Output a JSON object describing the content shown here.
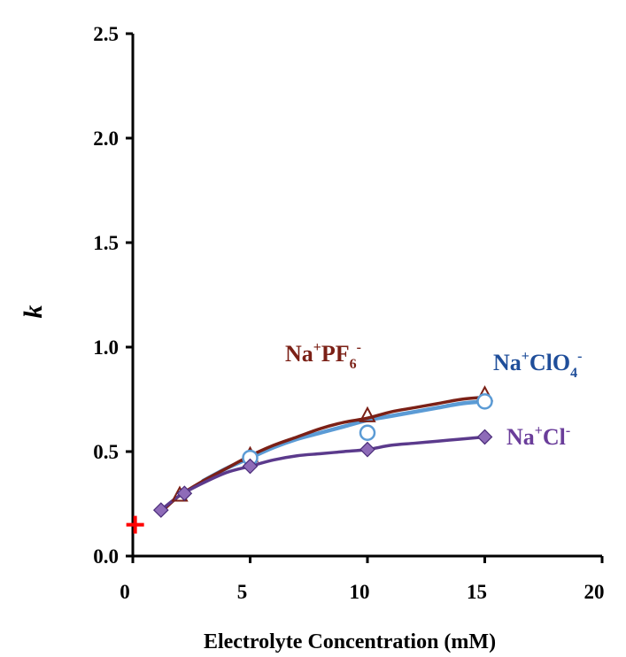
{
  "chart_data": {
    "type": "scatter",
    "xlabel": "Electrolyte Concentration (mM)",
    "ylabel": "k",
    "xlim": [
      0,
      20
    ],
    "ylim": [
      0,
      2.5
    ],
    "x_ticks": [
      "0",
      "5",
      "10",
      "15",
      "20"
    ],
    "y_ticks": [
      "0.0",
      "0.5",
      "1.0",
      "1.5",
      "2.0",
      "2.5"
    ],
    "grid": false,
    "series": [
      {
        "name": "Na+PF6-",
        "label_parts": {
          "base": "Na",
          "sup1": "+",
          "mid": "PF",
          "sub": "6",
          "sup2": "-"
        },
        "color": "#7b2016",
        "marker": "triangle",
        "x": [
          2,
          5,
          10,
          15
        ],
        "y": [
          0.29,
          0.48,
          0.67,
          0.77
        ],
        "fit_x": [
          1.2,
          2,
          3,
          4,
          5,
          6,
          7,
          8,
          9,
          10,
          11,
          12,
          13,
          14,
          15
        ],
        "fit_y": [
          0.21,
          0.29,
          0.36,
          0.42,
          0.48,
          0.53,
          0.57,
          0.61,
          0.64,
          0.66,
          0.69,
          0.71,
          0.73,
          0.75,
          0.76
        ]
      },
      {
        "name": "Na+ClO4-",
        "label_parts": {
          "base": "Na",
          "sup1": "+",
          "mid": "ClO",
          "sub": "4",
          "sup2": "-"
        },
        "color": "#1f4e9a",
        "marker_color": "#5b9bd5",
        "marker": "circle",
        "x": [
          5,
          10,
          15
        ],
        "y": [
          0.47,
          0.59,
          0.74
        ],
        "fit_x": [
          3,
          4,
          5,
          6,
          7,
          8,
          9,
          10,
          11,
          12,
          13,
          14,
          15
        ],
        "fit_y": [
          0.36,
          0.42,
          0.47,
          0.52,
          0.56,
          0.59,
          0.62,
          0.65,
          0.67,
          0.69,
          0.71,
          0.73,
          0.74
        ]
      },
      {
        "name": "Na+Cl-",
        "label_parts": {
          "base": "Na",
          "sup1": "+",
          "mid": "Cl",
          "sub": "",
          "sup2": "-"
        },
        "color": "#6a3d9a",
        "marker_color": "#8e6bb8",
        "marker": "diamond",
        "x": [
          1.2,
          2.2,
          5,
          10,
          15
        ],
        "y": [
          0.22,
          0.3,
          0.43,
          0.51,
          0.57
        ],
        "fit_x": [
          1.2,
          2,
          3,
          4,
          5,
          6,
          7,
          8,
          9,
          10,
          11,
          12,
          13,
          14,
          15
        ],
        "fit_y": [
          0.22,
          0.29,
          0.35,
          0.4,
          0.43,
          0.46,
          0.48,
          0.49,
          0.5,
          0.51,
          0.53,
          0.54,
          0.55,
          0.56,
          0.57
        ]
      }
    ],
    "annotation": {
      "marker": "plus",
      "color": "#ff0000",
      "x": 0.1,
      "y": 0.15
    }
  }
}
